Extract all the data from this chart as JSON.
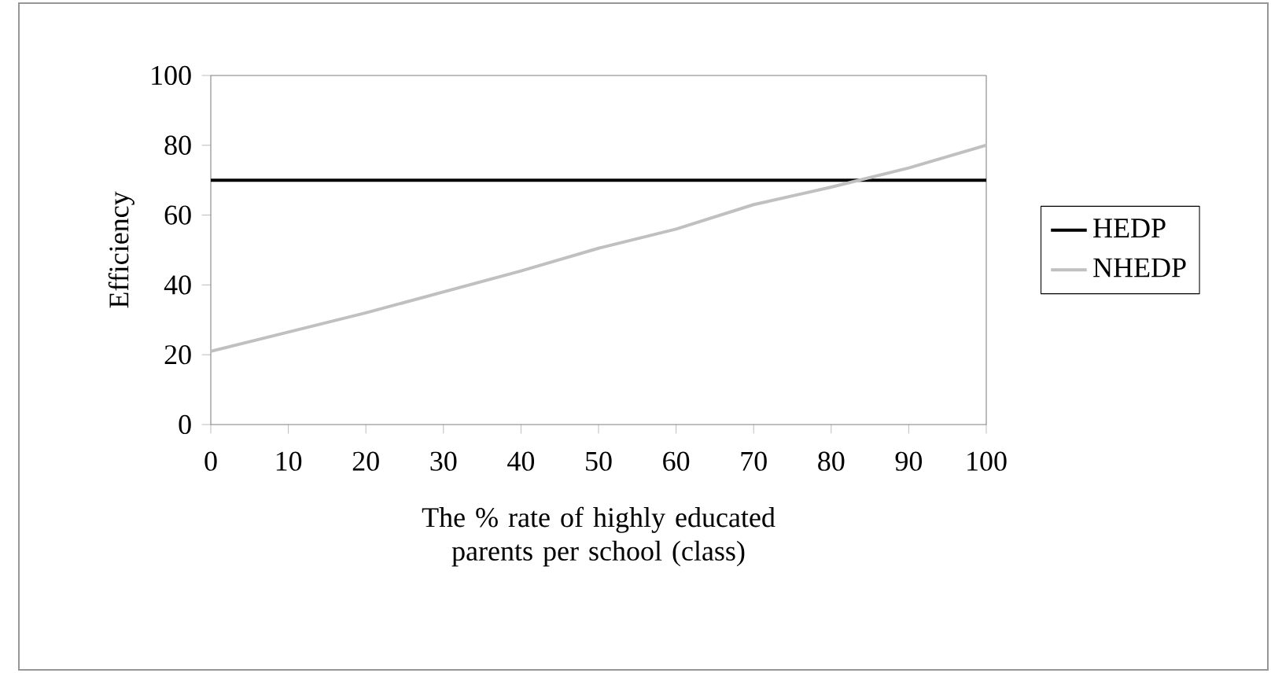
{
  "chart_data": {
    "type": "line",
    "xlabel": "The % rate of highly educated parents per school (class)",
    "ylabel": "Efficiency",
    "x": [
      0,
      10,
      20,
      30,
      40,
      50,
      60,
      70,
      80,
      90,
      100
    ],
    "series": [
      {
        "name": "HEDP",
        "color": "#000000",
        "values": [
          70,
          70,
          70,
          70,
          70,
          70,
          70,
          70,
          70,
          70,
          70
        ]
      },
      {
        "name": "NHEDP",
        "color": "#c0c0c0",
        "values": [
          21,
          26.5,
          32,
          38,
          44,
          50.5,
          56,
          63,
          68,
          73.5,
          80
        ]
      }
    ],
    "xlim": [
      0,
      100
    ],
    "xticks": [
      0,
      10,
      20,
      30,
      40,
      50,
      60,
      70,
      80,
      90,
      100
    ],
    "ylim": [
      0,
      100
    ],
    "yticks": [
      0,
      20,
      40,
      60,
      80,
      100
    ],
    "grid": false,
    "legend": "right",
    "marker": "none",
    "line_style": "solid"
  }
}
